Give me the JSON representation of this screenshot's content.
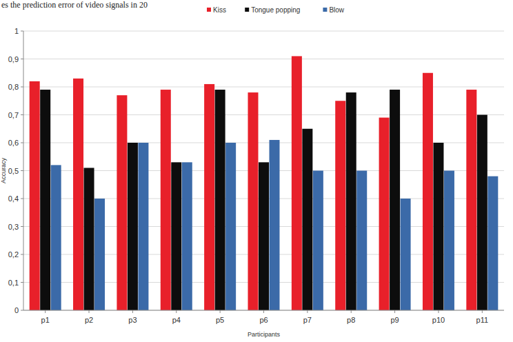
{
  "chart_data": {
    "type": "bar",
    "annotations": [
      "es the prediction error of video signals in 20"
    ],
    "x_label": "Participants",
    "y_label": "Accuracy",
    "categories": [
      "p1",
      "p2",
      "p3",
      "p4",
      "p5",
      "p6",
      "p7",
      "p8",
      "p9",
      "p10",
      "p11"
    ],
    "series": [
      {
        "name": "Kiss",
        "color": "#e8202a",
        "values": [
          0.82,
          0.83,
          0.77,
          0.79,
          0.81,
          0.78,
          0.91,
          0.75,
          0.69,
          0.85,
          0.79
        ]
      },
      {
        "name": "Tongue popping",
        "color": "#0d0d0d",
        "values": [
          0.79,
          0.51,
          0.6,
          0.53,
          0.79,
          0.53,
          0.65,
          0.78,
          0.79,
          0.6,
          0.7
        ]
      },
      {
        "name": "Blow",
        "color": "#3b6aa8",
        "values": [
          0.52,
          0.4,
          0.6,
          0.53,
          0.6,
          0.61,
          0.5,
          0.5,
          0.4,
          0.5,
          0.48
        ]
      }
    ],
    "ylim": [
      0,
      1
    ],
    "yticks": [
      0,
      {
        "value": 0.1,
        "label": "0,1"
      },
      {
        "value": 0.2,
        "label": "0,2"
      },
      {
        "value": 0.3,
        "label": "0,3"
      },
      {
        "value": 0.4,
        "label": "0,4"
      },
      {
        "value": 0.5,
        "label": "0,5"
      },
      {
        "value": 0.6,
        "label": "0,6"
      },
      {
        "value": 0.7,
        "label": "0,7"
      },
      {
        "value": 0.8,
        "label": "0,8"
      },
      {
        "value": 0.9,
        "label": "0,9"
      },
      1
    ],
    "grid": true,
    "legend": "top"
  }
}
